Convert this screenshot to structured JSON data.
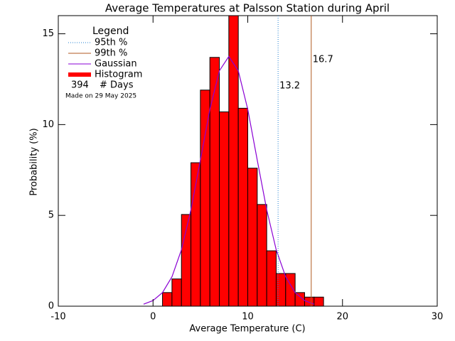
{
  "chart_data": {
    "type": "histogram",
    "title": "Average Temperatures at Palsson Station during April",
    "x_label": "Average Temperature (C)",
    "y_label": "Probability (%)",
    "bins": [
      1,
      2,
      3,
      4,
      5,
      6,
      7,
      8,
      9,
      10,
      11,
      12,
      13,
      14,
      15,
      16,
      17,
      18
    ],
    "values": [
      0.75,
      1.5,
      5.05,
      7.9,
      11.9,
      13.7,
      10.7,
      16.2,
      10.9,
      7.6,
      5.6,
      3.05,
      1.8,
      1.8,
      0.75,
      0.5,
      0.5
    ],
    "name": "Histogram",
    "color": "#ff0000",
    "gaussian": {
      "name": "Gaussian",
      "color": "#8a00d4",
      "x": [
        -1,
        0,
        1,
        2,
        3,
        4,
        5,
        6,
        7,
        8,
        9,
        10,
        11,
        12,
        13,
        14,
        15,
        16,
        17
      ],
      "values": [
        0.11,
        0.31,
        0.75,
        1.62,
        3.11,
        5.31,
        8.05,
        10.84,
        12.96,
        13.75,
        12.96,
        10.84,
        8.05,
        5.31,
        3.11,
        1.62,
        0.75,
        0.31,
        0.11
      ]
    },
    "percentile_lines": [
      {
        "name": "95th %",
        "value": 13.2,
        "color": "#1f7fd0",
        "style": "dotted"
      },
      {
        "name": "99th %",
        "value": 16.7,
        "color": "#b05a20",
        "style": "solid"
      }
    ],
    "legend_title": "Legend",
    "days": 394,
    "days_label": "# Days",
    "note": "Made on 29 May 2025",
    "xlim": [
      -10,
      30
    ],
    "xticks": [
      -10,
      0,
      10,
      20,
      30
    ],
    "ylim": [
      0,
      16
    ],
    "yticks": [
      0,
      5,
      10,
      15
    ]
  }
}
